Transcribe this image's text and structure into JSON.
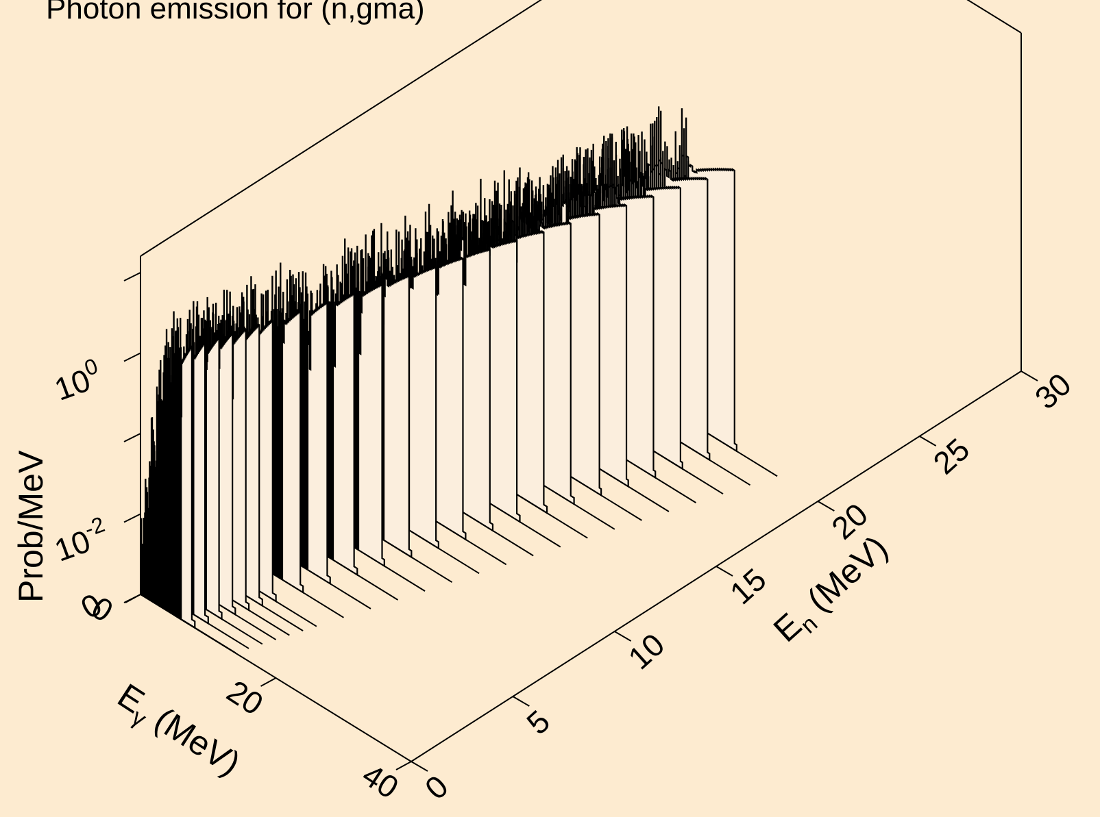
{
  "chart_data": {
    "type": "3d-waterfall",
    "title": "Photon emission for (n,gma)",
    "x_axis": {
      "label_main": "E",
      "label_sub": "γ",
      "label_unit": " (MeV)",
      "range": [
        0,
        40
      ],
      "ticks": [
        "0",
        "20",
        "40"
      ]
    },
    "y_axis": {
      "label_main": "E",
      "label_sub": "n",
      "label_unit": " (MeV)",
      "range": [
        0,
        30
      ],
      "ticks": [
        "0",
        "5",
        "10",
        "15",
        "20",
        "25",
        "30"
      ]
    },
    "z_axis": {
      "label": "Prob/MeV",
      "scale": "log",
      "range": [
        0.001,
        10
      ],
      "ticks": [
        {
          "base": "10",
          "exp": "0"
        },
        {
          "base": "10",
          "exp": "-2"
        }
      ]
    },
    "series": [
      {
        "en": 0.01,
        "peak_eg": 6.0
      },
      {
        "en": 0.5,
        "peak_eg": 6.5
      },
      {
        "en": 1.0,
        "peak_eg": 7.0
      },
      {
        "en": 1.5,
        "peak_eg": 7.5
      },
      {
        "en": 2.0,
        "peak_eg": 8.0
      },
      {
        "en": 2.5,
        "peak_eg": 8.5
      },
      {
        "en": 3.0,
        "peak_eg": 9.0
      },
      {
        "en": 4.0,
        "peak_eg": 10.0
      },
      {
        "en": 5.0,
        "peak_eg": 11.0
      },
      {
        "en": 6.0,
        "peak_eg": 12.0
      },
      {
        "en": 7.0,
        "peak_eg": 13.0
      },
      {
        "en": 8.0,
        "peak_eg": 14.0
      },
      {
        "en": 9.0,
        "peak_eg": 15.0
      },
      {
        "en": 10.0,
        "peak_eg": 16.0
      },
      {
        "en": 11.0,
        "peak_eg": 17.0
      },
      {
        "en": 12.0,
        "peak_eg": 18.0
      },
      {
        "en": 13.0,
        "peak_eg": 19.0
      },
      {
        "en": 14.0,
        "peak_eg": 20.0
      },
      {
        "en": 15.0,
        "peak_eg": 21.0
      },
      {
        "en": 16.0,
        "peak_eg": 22.0
      },
      {
        "en": 17.0,
        "peak_eg": 23.0
      },
      {
        "en": 18.0,
        "peak_eg": 24.0
      },
      {
        "en": 19.0,
        "peak_eg": 25.0
      },
      {
        "en": 20.0,
        "peak_eg": 26.0
      }
    ],
    "colors": {
      "background": "#fdebd0",
      "fill": "#fbeedd",
      "line": "#000000"
    }
  }
}
